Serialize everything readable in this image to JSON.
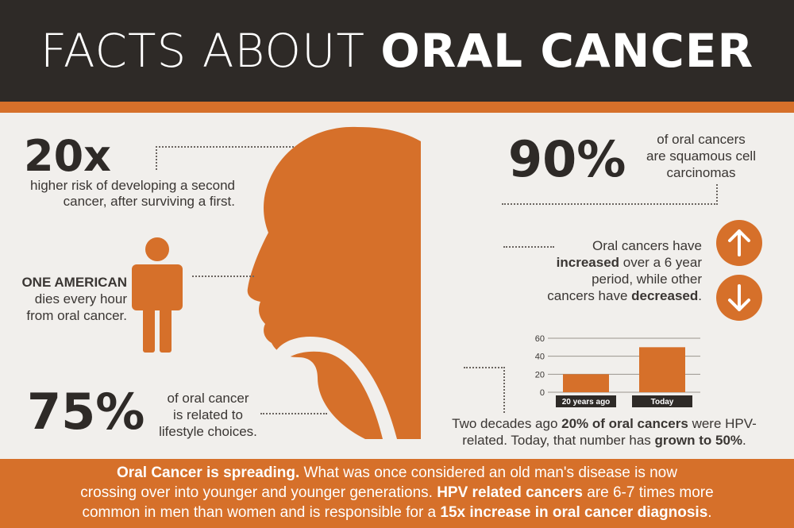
{
  "title": {
    "thin": "FACTS ABOUT ",
    "bold": "ORAL CANCER"
  },
  "stats": {
    "twenty_x": {
      "value": "20x",
      "caption_line1": "higher risk of developing a second",
      "caption_line2": "cancer, after surviving a first."
    },
    "one_american": {
      "headline": "ONE AMERICAN",
      "line2": "dies every hour",
      "line3": "from oral cancer."
    },
    "seventy_five": {
      "value": "75%",
      "line1": "of oral cancer",
      "line2": "is related to",
      "line3": "lifestyle choices."
    },
    "ninety": {
      "value": "90%",
      "line1": "of oral cancers",
      "line2": "are squamous cell",
      "line3": "carcinomas"
    },
    "trend": {
      "line1": "Oral cancers have",
      "line2_bold": "increased",
      "line2_rest": " over a 6 year",
      "line3": "period, while other",
      "line4_pre": "cancers have ",
      "line4_bold": "decreased",
      "line4_post": "."
    },
    "hpv": {
      "l1_pre": "Two decades ago ",
      "l1_bold": "20% of oral cancers",
      "l1_post": " were HPV-",
      "l2_pre": "related. Today, that number has ",
      "l2_bold": "grown to 50%",
      "l2_post": "."
    }
  },
  "footer": {
    "s1_bold": "Oral Cancer is spreading.",
    "s1_rest": " What was once considered an old man's disease is now",
    "s2_pre": "crossing over into younger and younger generations. ",
    "s2_bold": "HPV related cancers",
    "s2_rest": " are 6-7 times more",
    "s3_pre": "common in men than women and is responsible for a ",
    "s3_bold": "15x increase in oral cancer diagnosis",
    "s3_post": "."
  },
  "icons": {
    "up": "arrow-up-icon",
    "down": "arrow-down-icon",
    "person": "person-icon",
    "head": "head-profile-icon"
  },
  "colors": {
    "accent": "#d6702a",
    "dark": "#2e2a27",
    "background": "#f1efec"
  },
  "chart_data": {
    "type": "bar",
    "categories": [
      "20 years ago",
      "Today"
    ],
    "values": [
      20,
      50
    ],
    "ylim": [
      0,
      60
    ],
    "yticks": [
      "0",
      "20",
      "40",
      "60"
    ],
    "grid": true
  }
}
